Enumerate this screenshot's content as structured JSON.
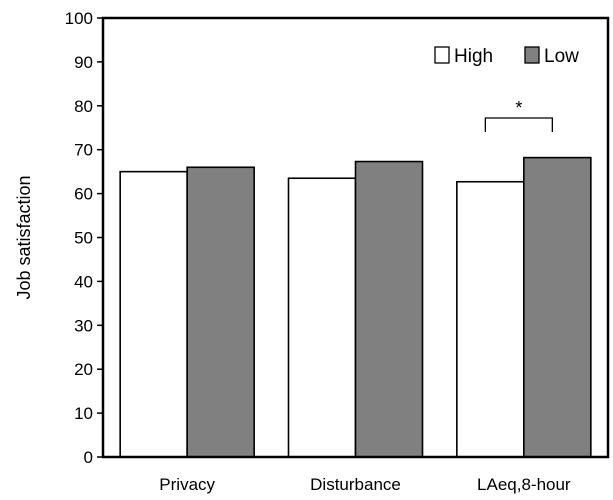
{
  "chart_data": {
    "type": "bar",
    "title": "",
    "xlabel": "",
    "ylabel": "Job satisfaction",
    "ylim": [
      0,
      100
    ],
    "yticks": [
      0,
      10,
      20,
      30,
      40,
      50,
      60,
      70,
      80,
      90,
      100
    ],
    "categories": [
      "Privacy",
      "Disturbance",
      "LAeq,8-hour"
    ],
    "series": [
      {
        "name": "High",
        "color": "#ffffff",
        "values": [
          65.0,
          63.5,
          62.7
        ]
      },
      {
        "name": "Low",
        "color": "#808080",
        "values": [
          66.0,
          67.3,
          68.2
        ]
      }
    ],
    "legend_position": "top-right",
    "grid": false,
    "annotations": [
      {
        "text": "*",
        "category": "LAeq,8-hour",
        "type": "significance-bracket"
      }
    ]
  }
}
